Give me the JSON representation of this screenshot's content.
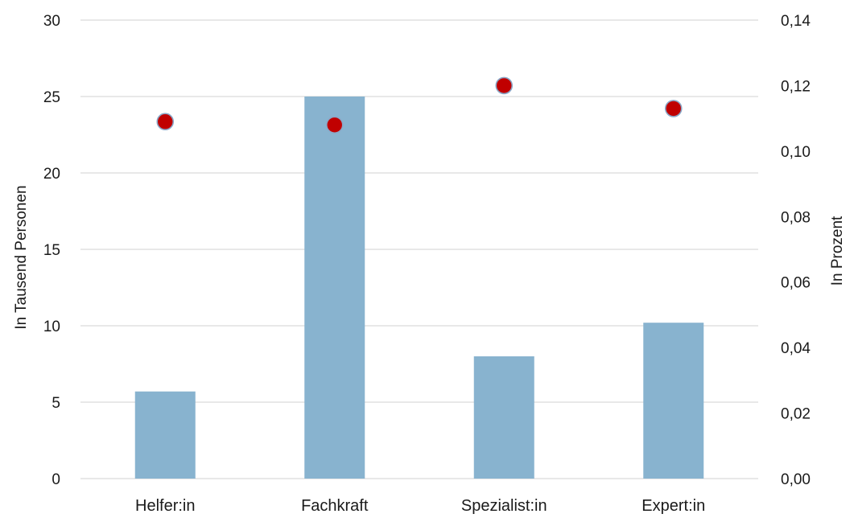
{
  "chart_data": {
    "type": "bar",
    "title": "",
    "categories": [
      "Helfer:in",
      "Fachkraft",
      "Spezialist:in",
      "Expert:in"
    ],
    "series": [
      {
        "axis": "left",
        "type": "bar",
        "values": [
          5.7,
          25.0,
          8.0,
          10.2
        ],
        "color": "#88b3cf"
      },
      {
        "axis": "right",
        "type": "scatter",
        "values": [
          0.109,
          0.108,
          0.12,
          0.113
        ],
        "color": "#c00000"
      }
    ],
    "ylabel": "In Tausend Personen",
    "ylabel_right": "In Prozent",
    "ylim": [
      0,
      30
    ],
    "ylim_right": [
      0,
      0.14
    ],
    "yticks": [
      "0",
      "5",
      "10",
      "15",
      "20",
      "25",
      "30"
    ],
    "yticks_right": [
      "0,00",
      "0,02",
      "0,04",
      "0,06",
      "0,08",
      "0,10",
      "0,12",
      "0,14"
    ],
    "grid": true,
    "gridline_color": "#d9d9d9",
    "legend": "none"
  }
}
